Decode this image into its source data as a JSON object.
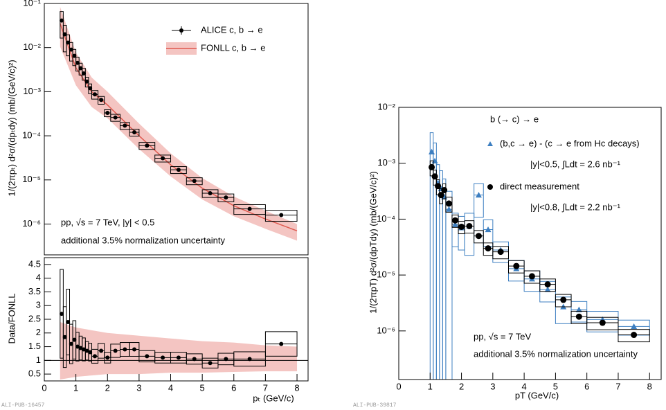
{
  "chart_data": [
    {
      "type": "scatter",
      "yscale": "log",
      "xlim": [
        0,
        8.35
      ],
      "ylim": [
        2e-07,
        0.1
      ],
      "yticks": [
        {
          "value": 1e-06,
          "label": "10⁻⁶"
        },
        {
          "value": 1e-05,
          "label": "10⁻⁵"
        },
        {
          "value": 0.0001,
          "label": "10⁻⁴"
        },
        {
          "value": 0.001,
          "label": "10⁻³"
        },
        {
          "value": 0.01,
          "label": "10⁻²"
        },
        {
          "value": 0.1,
          "label": "10⁻¹"
        }
      ],
      "ylabel": "1/(2πpₜ) d²σ/(dpₜdy) (mb/(GeV/c)²)",
      "legend": "upper right",
      "series": [
        {
          "name": "ALICE c, b → e",
          "color": "#000000",
          "marker": "circle",
          "x": [
            0.55,
            0.65,
            0.75,
            0.85,
            0.95,
            1.05,
            1.15,
            1.25,
            1.35,
            1.45,
            1.6,
            1.8,
            2.0,
            2.25,
            2.55,
            2.85,
            3.25,
            3.75,
            4.25,
            4.75,
            5.25,
            5.75,
            6.5,
            7.5
          ],
          "xerr": [
            0.05,
            0.05,
            0.05,
            0.05,
            0.05,
            0.05,
            0.05,
            0.05,
            0.05,
            0.05,
            0.1,
            0.1,
            0.1,
            0.15,
            0.15,
            0.15,
            0.25,
            0.25,
            0.25,
            0.25,
            0.25,
            0.25,
            0.5,
            0.5
          ],
          "values": [
            0.041,
            0.02,
            0.013,
            0.009,
            0.0065,
            0.0045,
            0.0034,
            0.0026,
            0.0017,
            0.0012,
            0.00087,
            0.00065,
            0.00033,
            0.00026,
            0.00017,
            0.00012,
            6e-05,
            3.1e-05,
            1.7e-05,
            9.5e-06,
            5e-06,
            4e-06,
            2.2e-06,
            1.6e-06
          ],
          "syst_rel": [
            0.6,
            0.6,
            0.5,
            0.45,
            0.4,
            0.35,
            0.3,
            0.3,
            0.25,
            0.25,
            0.22,
            0.2,
            0.18,
            0.18,
            0.18,
            0.18,
            0.18,
            0.18,
            0.18,
            0.18,
            0.2,
            0.2,
            0.25,
            0.28
          ]
        }
      ],
      "band": {
        "name": "FONLL c, b → e",
        "color": "#e05a50",
        "x": [
          0.5,
          1,
          1.5,
          2,
          3,
          4,
          5,
          6,
          7,
          8
        ],
        "values": [
          0.035,
          0.0035,
          0.001,
          0.0005,
          0.0001,
          2.2e-05,
          6.5e-06,
          2.6e-06,
          1.3e-06,
          7e-07
        ],
        "lower": [
          0.0105,
          0.0014,
          0.00045,
          0.00025,
          5e-05,
          1.2e-05,
          3.6e-06,
          1.5e-06,
          7.8e-07,
          4.2e-07
        ],
        "upper": [
          0.084,
          0.0077,
          0.0021,
          0.001,
          0.00019,
          4e-05,
          1.1e-05,
          4.2e-06,
          2e-06,
          1e-06
        ]
      },
      "annotations": [
        "pp, √s = 7 TeV, |y| < 0.5",
        "additional 3.5% normalization uncertainty"
      ]
    },
    {
      "type": "scatter",
      "yscale": "linear",
      "xlim": [
        0,
        8.35
      ],
      "ylim": [
        0.25,
        4.75
      ],
      "yticks": [
        0.5,
        1,
        1.5,
        2,
        2.5,
        3,
        3.5,
        4,
        4.5
      ],
      "xticks": [
        0,
        1,
        2,
        3,
        4,
        5,
        6,
        7,
        8
      ],
      "ylabel": "Data/FONLL",
      "xlabel": "pₜ (GeV/c)",
      "note": "ALI-PUB-16457",
      "ref_line": 1,
      "series": [
        {
          "color": "#000000",
          "marker": "circle",
          "x": [
            0.55,
            0.65,
            0.75,
            0.85,
            0.95,
            1.05,
            1.15,
            1.25,
            1.35,
            1.45,
            1.6,
            1.8,
            2.0,
            2.25,
            2.55,
            2.85,
            3.25,
            3.75,
            4.25,
            4.75,
            5.25,
            5.75,
            6.5,
            7.5
          ],
          "xerr": [
            0.05,
            0.05,
            0.05,
            0.05,
            0.05,
            0.05,
            0.05,
            0.05,
            0.05,
            0.05,
            0.1,
            0.1,
            0.1,
            0.15,
            0.15,
            0.15,
            0.25,
            0.25,
            0.25,
            0.25,
            0.25,
            0.25,
            0.5,
            0.5
          ],
          "values": [
            2.7,
            1.85,
            2.4,
            1.6,
            1.75,
            1.5,
            1.45,
            1.4,
            1.35,
            1.3,
            1.15,
            1.35,
            1.1,
            1.35,
            1.4,
            1.4,
            1.15,
            1.1,
            1.1,
            1.05,
            0.9,
            1.05,
            1.05,
            1.6
          ],
          "syst_rel": [
            0.6,
            0.6,
            0.5,
            0.45,
            0.4,
            0.35,
            0.3,
            0.3,
            0.25,
            0.25,
            0.22,
            0.2,
            0.18,
            0.18,
            0.18,
            0.18,
            0.18,
            0.18,
            0.18,
            0.18,
            0.2,
            0.2,
            0.25,
            0.28
          ]
        }
      ],
      "band": {
        "color": "#e05a50",
        "x": [
          0.5,
          1,
          1.5,
          2,
          3,
          4,
          5,
          6,
          7,
          8
        ],
        "lower": [
          0.3,
          0.4,
          0.45,
          0.5,
          0.5,
          0.55,
          0.55,
          0.58,
          0.6,
          0.6
        ],
        "upper": [
          2.4,
          2.2,
          2.1,
          2.0,
          1.9,
          1.8,
          1.7,
          1.65,
          1.55,
          1.5
        ]
      }
    },
    {
      "type": "scatter",
      "yscale": "log",
      "xlim": [
        0,
        8.37
      ],
      "ylim": [
        1.35e-07,
        0.01
      ],
      "yticks": [
        {
          "value": 1e-06,
          "label": "10⁻⁶"
        },
        {
          "value": 1e-05,
          "label": "10⁻⁵"
        },
        {
          "value": 0.0001,
          "label": "10⁻⁴"
        },
        {
          "value": 0.001,
          "label": "10⁻³"
        },
        {
          "value": 0.01,
          "label": "10⁻²"
        }
      ],
      "xticks": [
        0,
        1,
        2,
        3,
        4,
        5,
        6,
        7,
        8
      ],
      "ylabel": "1/(2πpT) d²σ/(dpTdy) (mb/(GeV/c)²)",
      "xlabel": "pT (GeV/c)",
      "note": "ALI-PUB-39817",
      "title": "b (→ c) → e",
      "legend": "upper right",
      "series": [
        {
          "name": "(b,c → e) - (c → e from Hc decays)",
          "note": "|y|<0.5, ∫Ldt = 2.6 nb⁻¹",
          "color": "#3d7fc1",
          "marker": "triangle",
          "x": [
            1.05,
            1.15,
            1.25,
            1.35,
            1.45,
            1.6,
            1.8,
            2.0,
            2.25,
            2.55,
            2.85,
            3.25,
            3.75,
            4.25,
            4.75,
            5.25,
            5.75,
            6.5,
            7.5
          ],
          "xerr": [
            0.05,
            0.05,
            0.05,
            0.05,
            0.05,
            0.1,
            0.1,
            0.1,
            0.15,
            0.15,
            0.15,
            0.25,
            0.25,
            0.25,
            0.25,
            0.25,
            0.25,
            0.5,
            0.5
          ],
          "values": [
            0.0016,
            0.0011,
            0.00045,
            0.00035,
            0.00025,
            0.00015,
            8e-05,
            7e-05,
            7.5e-05,
            0.00027,
            6.5e-05,
            2.8e-05,
            1.3e-05,
            8.5e-06,
            5.5e-06,
            2.7e-06,
            2.4e-06,
            1.6e-06,
            1.2e-06
          ],
          "syst_rel": [
            1.2,
            1.1,
            1.1,
            1.1,
            1.1,
            1.1,
            0.6,
            0.6,
            0.7,
            0.6,
            0.5,
            0.4,
            0.4,
            0.4,
            0.4,
            0.5,
            0.4,
            0.4,
            0.3
          ]
        },
        {
          "name": "direct measurement",
          "note": "|y|<0.8, ∫Ldt = 2.2 nb⁻¹",
          "color": "#000000",
          "marker": "circle",
          "x": [
            1.05,
            1.15,
            1.25,
            1.35,
            1.45,
            1.6,
            1.8,
            2.0,
            2.25,
            2.55,
            2.85,
            3.25,
            3.75,
            4.25,
            4.75,
            5.25,
            5.75,
            6.5,
            7.5
          ],
          "xerr": [
            0.05,
            0.05,
            0.05,
            0.05,
            0.05,
            0.1,
            0.1,
            0.1,
            0.15,
            0.15,
            0.15,
            0.25,
            0.25,
            0.25,
            0.25,
            0.25,
            0.25,
            0.5,
            0.5
          ],
          "values": [
            0.00085,
            0.00058,
            0.00039,
            0.00027,
            0.00033,
            0.00019,
            9.5e-05,
            7.3e-05,
            7.5e-05,
            5e-05,
            3e-05,
            2.6e-05,
            1.45e-05,
            9.5e-06,
            6.8e-06,
            3.6e-06,
            1.8e-06,
            1.4e-06,
            8.5e-07
          ],
          "syst_rel": [
            0.3,
            0.3,
            0.3,
            0.3,
            0.3,
            0.3,
            0.25,
            0.25,
            0.25,
            0.25,
            0.25,
            0.25,
            0.25,
            0.25,
            0.25,
            0.25,
            0.25,
            0.25,
            0.25
          ]
        }
      ],
      "annotations": [
        "pp, √s = 7 TeV",
        "additional 3.5% normalization uncertainty"
      ]
    }
  ]
}
